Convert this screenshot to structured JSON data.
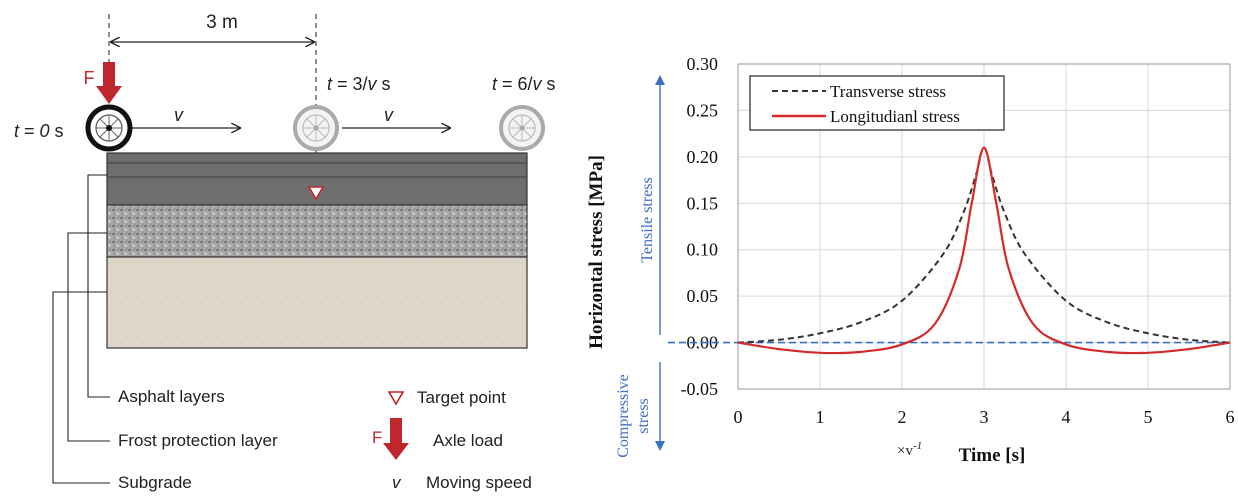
{
  "diagram": {
    "distance_label": "3 m",
    "force_label": "F",
    "times": {
      "t0": {
        "t": "t",
        "eq": " = ",
        "val": "0",
        "unit": " s"
      },
      "t3": {
        "t": "t",
        "eq": " = 3/",
        "val": "v",
        "unit": " s"
      },
      "t6": {
        "t": "t",
        "eq": " = 6/",
        "val": "v",
        "unit": " s"
      }
    },
    "speed_symbol": "v",
    "layers": [
      "Asphalt layers",
      "Frost protection layer",
      "Subgrade"
    ],
    "legend": {
      "target_point": "Target point",
      "axle_load_symbol": "F",
      "axle_load": "Axle load",
      "speed_symbol": "v",
      "moving_speed": "Moving speed"
    },
    "colors": {
      "force": "#c0272d",
      "target": "#c0272d",
      "asphalt": "#6e6e6e",
      "frost": "#a9a9a9",
      "subgrade": "#ded6c8"
    }
  },
  "chart_data": {
    "type": "line",
    "ylabel": "Horizontal  stress [MPa]",
    "xlabel": "Time [s]",
    "xlabel_prefix": "×v",
    "xlabel_prefix_sup": "-1",
    "xlim": [
      0,
      6
    ],
    "ylim": [
      -0.05,
      0.3
    ],
    "x_ticks": [
      0,
      1,
      2,
      3,
      4,
      5,
      6
    ],
    "y_ticks": [
      -0.05,
      0.0,
      0.05,
      0.1,
      0.15,
      0.2,
      0.25,
      0.3
    ],
    "y_tick_labels": [
      "-0.05",
      "0.00",
      "0.05",
      "0.10",
      "0.15",
      "0.20",
      "0.25",
      "0.30"
    ],
    "grid": true,
    "legend_position": "top-left",
    "tensile_label": "Tensile stress",
    "compressive_label": [
      "Compressive",
      "stress"
    ],
    "zero_line_color": "#3b6fc4",
    "series": [
      {
        "name": "Transverse stress",
        "style": "dashed",
        "color": "#333333",
        "x": [
          0,
          0.5,
          1,
          1.5,
          2,
          2.5,
          2.75,
          2.9,
          3,
          3.1,
          3.25,
          3.5,
          4,
          4.5,
          5,
          5.5,
          6
        ],
        "y": [
          0.0,
          0.003,
          0.01,
          0.022,
          0.045,
          0.095,
          0.14,
          0.18,
          0.21,
          0.18,
          0.14,
          0.095,
          0.045,
          0.022,
          0.01,
          0.003,
          0.0
        ]
      },
      {
        "name": "Longitudianl stress",
        "style": "solid",
        "color": "#d42a2a",
        "x": [
          0,
          0.5,
          1,
          1.5,
          2,
          2.4,
          2.7,
          2.85,
          3,
          3.15,
          3.3,
          3.6,
          4,
          4.5,
          5,
          5.5,
          6
        ],
        "y": [
          0.0,
          -0.007,
          -0.011,
          -0.01,
          -0.002,
          0.02,
          0.08,
          0.15,
          0.21,
          0.15,
          0.08,
          0.02,
          -0.002,
          -0.01,
          -0.011,
          -0.007,
          0.0
        ]
      }
    ]
  }
}
